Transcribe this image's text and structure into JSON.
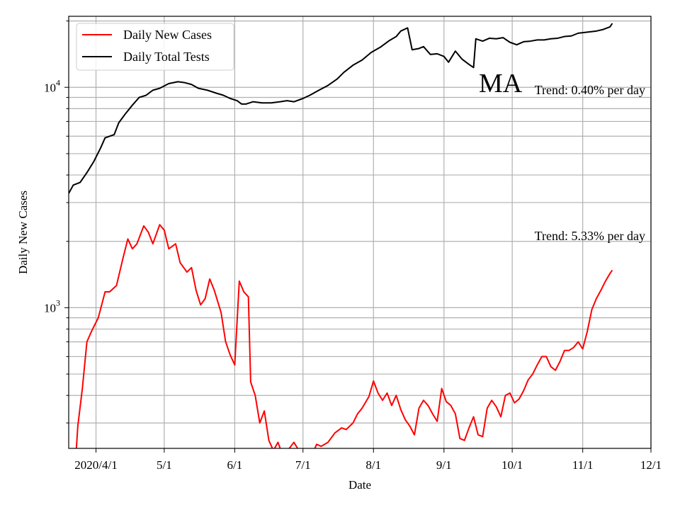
{
  "chart_data": {
    "type": "line",
    "title": "",
    "xlabel": "Date",
    "ylabel": "Daily New Cases",
    "yscale": "log",
    "ylim": [
      230,
      21000
    ],
    "xlim": [
      "2020-03-20",
      "2020-12-01"
    ],
    "grid": true,
    "legend_position": "top-left",
    "x_ticks": [
      {
        "date": "2020-04-01",
        "label": "2020/4/1"
      },
      {
        "date": "2020-05-01",
        "label": "5/1"
      },
      {
        "date": "2020-06-01",
        "label": "6/1"
      },
      {
        "date": "2020-07-01",
        "label": "7/1"
      },
      {
        "date": "2020-08-01",
        "label": "8/1"
      },
      {
        "date": "2020-09-01",
        "label": "9/1"
      },
      {
        "date": "2020-10-01",
        "label": "10/1"
      },
      {
        "date": "2020-11-01",
        "label": "11/1"
      },
      {
        "date": "2020-12-01",
        "label": "12/1"
      }
    ],
    "y_major_ticks": [
      {
        "value": 1000,
        "base": "10",
        "exp": "3"
      },
      {
        "value": 10000,
        "base": "10",
        "exp": "4"
      }
    ],
    "annotations": {
      "state": "MA",
      "tests_trend": "Trend: 0.40% per day",
      "cases_trend": "Trend: 5.33% per day"
    },
    "series": [
      {
        "name": "Daily New Cases",
        "color": "#ff0000",
        "points": [
          [
            "2020-03-23",
            200
          ],
          [
            "2020-03-24",
            290
          ],
          [
            "2020-03-26",
            430
          ],
          [
            "2020-03-28",
            700
          ],
          [
            "2020-03-30",
            780
          ],
          [
            "2020-04-02",
            900
          ],
          [
            "2020-04-05",
            1180
          ],
          [
            "2020-04-07",
            1180
          ],
          [
            "2020-04-10",
            1260
          ],
          [
            "2020-04-13",
            1700
          ],
          [
            "2020-04-15",
            2050
          ],
          [
            "2020-04-17",
            1850
          ],
          [
            "2020-04-19",
            1950
          ],
          [
            "2020-04-22",
            2350
          ],
          [
            "2020-04-24",
            2200
          ],
          [
            "2020-04-26",
            1950
          ],
          [
            "2020-04-29",
            2380
          ],
          [
            "2020-05-01",
            2250
          ],
          [
            "2020-05-03",
            1850
          ],
          [
            "2020-05-06",
            1950
          ],
          [
            "2020-05-08",
            1600
          ],
          [
            "2020-05-11",
            1450
          ],
          [
            "2020-05-13",
            1520
          ],
          [
            "2020-05-15",
            1200
          ],
          [
            "2020-05-17",
            1030
          ],
          [
            "2020-05-19",
            1100
          ],
          [
            "2020-05-21",
            1350
          ],
          [
            "2020-05-23",
            1200
          ],
          [
            "2020-05-26",
            950
          ],
          [
            "2020-05-28",
            700
          ],
          [
            "2020-05-30",
            610
          ],
          [
            "2020-06-01",
            550
          ],
          [
            "2020-06-03",
            1320
          ],
          [
            "2020-06-05",
            1180
          ],
          [
            "2020-06-07",
            1120
          ],
          [
            "2020-06-08",
            460
          ],
          [
            "2020-06-10",
            400
          ],
          [
            "2020-06-12",
            300
          ],
          [
            "2020-06-14",
            340
          ],
          [
            "2020-06-16",
            250
          ],
          [
            "2020-06-18",
            225
          ],
          [
            "2020-06-20",
            245
          ],
          [
            "2020-06-22",
            215
          ],
          [
            "2020-06-25",
            230
          ],
          [
            "2020-06-27",
            245
          ],
          [
            "2020-07-01",
            210
          ],
          [
            "2020-07-05",
            215
          ],
          [
            "2020-07-07",
            240
          ],
          [
            "2020-07-09",
            235
          ],
          [
            "2020-07-12",
            245
          ],
          [
            "2020-07-15",
            270
          ],
          [
            "2020-07-18",
            285
          ],
          [
            "2020-07-20",
            280
          ],
          [
            "2020-07-23",
            300
          ],
          [
            "2020-07-25",
            330
          ],
          [
            "2020-07-27",
            350
          ],
          [
            "2020-07-30",
            395
          ],
          [
            "2020-08-01",
            465
          ],
          [
            "2020-08-03",
            410
          ],
          [
            "2020-08-05",
            380
          ],
          [
            "2020-08-07",
            410
          ],
          [
            "2020-08-09",
            360
          ],
          [
            "2020-08-11",
            400
          ],
          [
            "2020-08-13",
            345
          ],
          [
            "2020-08-15",
            310
          ],
          [
            "2020-08-17",
            290
          ],
          [
            "2020-08-19",
            265
          ],
          [
            "2020-08-21",
            350
          ],
          [
            "2020-08-23",
            380
          ],
          [
            "2020-08-25",
            360
          ],
          [
            "2020-08-27",
            330
          ],
          [
            "2020-08-29",
            305
          ],
          [
            "2020-08-31",
            430
          ],
          [
            "2020-09-02",
            375
          ],
          [
            "2020-09-04",
            360
          ],
          [
            "2020-09-06",
            330
          ],
          [
            "2020-09-08",
            255
          ],
          [
            "2020-09-10",
            250
          ],
          [
            "2020-09-12",
            285
          ],
          [
            "2020-09-14",
            320
          ],
          [
            "2020-09-16",
            265
          ],
          [
            "2020-09-18",
            260
          ],
          [
            "2020-09-20",
            350
          ],
          [
            "2020-09-22",
            380
          ],
          [
            "2020-09-24",
            355
          ],
          [
            "2020-09-26",
            320
          ],
          [
            "2020-09-28",
            400
          ],
          [
            "2020-09-30",
            410
          ],
          [
            "2020-10-02",
            370
          ],
          [
            "2020-10-04",
            385
          ],
          [
            "2020-10-06",
            420
          ],
          [
            "2020-10-08",
            470
          ],
          [
            "2020-10-10",
            500
          ],
          [
            "2020-10-12",
            550
          ],
          [
            "2020-10-14",
            600
          ],
          [
            "2020-10-16",
            600
          ],
          [
            "2020-10-18",
            540
          ],
          [
            "2020-10-20",
            520
          ],
          [
            "2020-10-22",
            570
          ],
          [
            "2020-10-24",
            640
          ],
          [
            "2020-10-26",
            640
          ],
          [
            "2020-10-28",
            660
          ],
          [
            "2020-10-30",
            700
          ],
          [
            "2020-11-01",
            650
          ],
          [
            "2020-11-03",
            780
          ],
          [
            "2020-11-05",
            980
          ],
          [
            "2020-11-07",
            1100
          ],
          [
            "2020-11-09",
            1200
          ],
          [
            "2020-11-11",
            1320
          ],
          [
            "2020-11-13",
            1430
          ],
          [
            "2020-11-14",
            1480
          ]
        ]
      },
      {
        "name": "Daily Total Tests",
        "color": "#000000",
        "points": [
          [
            "2020-03-20",
            3300
          ],
          [
            "2020-03-22",
            3600
          ],
          [
            "2020-03-25",
            3700
          ],
          [
            "2020-03-28",
            4100
          ],
          [
            "2020-03-31",
            4600
          ],
          [
            "2020-04-03",
            5300
          ],
          [
            "2020-04-05",
            5900
          ],
          [
            "2020-04-07",
            6000
          ],
          [
            "2020-04-09",
            6100
          ],
          [
            "2020-04-11",
            6900
          ],
          [
            "2020-04-14",
            7600
          ],
          [
            "2020-04-17",
            8300
          ],
          [
            "2020-04-20",
            9000
          ],
          [
            "2020-04-23",
            9200
          ],
          [
            "2020-04-26",
            9700
          ],
          [
            "2020-04-29",
            9900
          ],
          [
            "2020-05-03",
            10400
          ],
          [
            "2020-05-07",
            10600
          ],
          [
            "2020-05-10",
            10500
          ],
          [
            "2020-05-13",
            10300
          ],
          [
            "2020-05-16",
            9900
          ],
          [
            "2020-05-20",
            9700
          ],
          [
            "2020-05-24",
            9400
          ],
          [
            "2020-05-27",
            9200
          ],
          [
            "2020-05-30",
            8900
          ],
          [
            "2020-06-02",
            8700
          ],
          [
            "2020-06-04",
            8400
          ],
          [
            "2020-06-06",
            8400
          ],
          [
            "2020-06-09",
            8600
          ],
          [
            "2020-06-13",
            8500
          ],
          [
            "2020-06-17",
            8500
          ],
          [
            "2020-06-21",
            8600
          ],
          [
            "2020-06-24",
            8700
          ],
          [
            "2020-06-27",
            8600
          ],
          [
            "2020-07-01",
            8900
          ],
          [
            "2020-07-04",
            9200
          ],
          [
            "2020-07-08",
            9700
          ],
          [
            "2020-07-12",
            10200
          ],
          [
            "2020-07-16",
            10900
          ],
          [
            "2020-07-19",
            11700
          ],
          [
            "2020-07-23",
            12600
          ],
          [
            "2020-07-27",
            13300
          ],
          [
            "2020-07-31",
            14400
          ],
          [
            "2020-08-04",
            15200
          ],
          [
            "2020-08-08",
            16300
          ],
          [
            "2020-08-11",
            17000
          ],
          [
            "2020-08-13",
            18000
          ],
          [
            "2020-08-16",
            18600
          ],
          [
            "2020-08-18",
            14800
          ],
          [
            "2020-08-21",
            15000
          ],
          [
            "2020-08-23",
            15300
          ],
          [
            "2020-08-26",
            14100
          ],
          [
            "2020-08-29",
            14200
          ],
          [
            "2020-09-01",
            13800
          ],
          [
            "2020-09-03",
            13000
          ],
          [
            "2020-09-06",
            14600
          ],
          [
            "2020-09-09",
            13400
          ],
          [
            "2020-09-12",
            12700
          ],
          [
            "2020-09-14",
            12300
          ],
          [
            "2020-09-15",
            16600
          ],
          [
            "2020-09-18",
            16200
          ],
          [
            "2020-09-21",
            16700
          ],
          [
            "2020-09-24",
            16600
          ],
          [
            "2020-09-27",
            16800
          ],
          [
            "2020-09-30",
            16000
          ],
          [
            "2020-10-03",
            15600
          ],
          [
            "2020-10-06",
            16100
          ],
          [
            "2020-10-09",
            16200
          ],
          [
            "2020-10-12",
            16400
          ],
          [
            "2020-10-15",
            16400
          ],
          [
            "2020-10-18",
            16600
          ],
          [
            "2020-10-21",
            16700
          ],
          [
            "2020-10-24",
            17000
          ],
          [
            "2020-10-27",
            17100
          ],
          [
            "2020-10-30",
            17600
          ],
          [
            "2020-11-03",
            17800
          ],
          [
            "2020-11-07",
            18000
          ],
          [
            "2020-11-10",
            18300
          ],
          [
            "2020-11-13",
            18800
          ],
          [
            "2020-11-14",
            19500
          ]
        ]
      }
    ]
  }
}
